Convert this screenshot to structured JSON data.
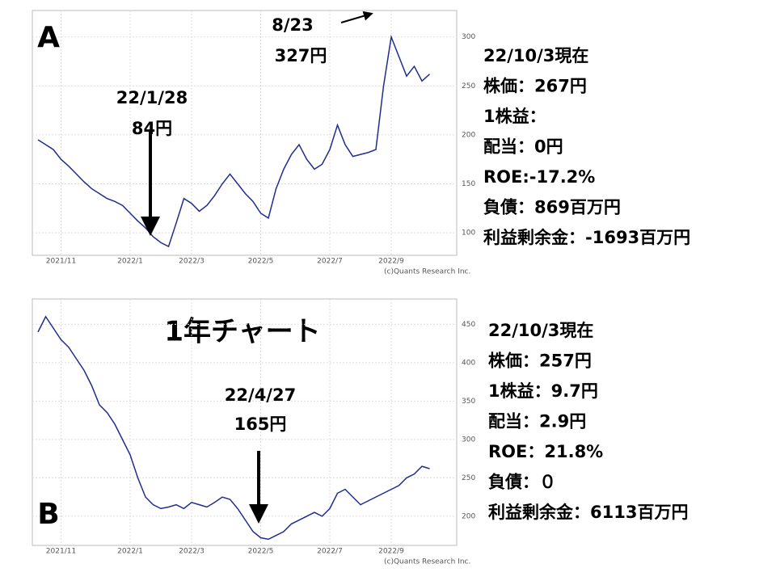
{
  "chart_title": "1年チャート",
  "chart_data": [
    {
      "type": "line",
      "label": "A",
      "credit": "(c)Quants Research Inc.",
      "categories": [
        null,
        null,
        null,
        "2021/11",
        null,
        null,
        null,
        null,
        null,
        null,
        null,
        null,
        "2022/1",
        null,
        null,
        null,
        null,
        null,
        null,
        null,
        "2022/3",
        null,
        null,
        null,
        null,
        null,
        null,
        null,
        null,
        "2022/5",
        null,
        null,
        null,
        null,
        null,
        null,
        null,
        null,
        "2022/7",
        null,
        null,
        null,
        null,
        null,
        null,
        null,
        "2022/9",
        null,
        null,
        null,
        null,
        null
      ],
      "series": [
        {
          "color": "#1f2d8f",
          "values": [
            195,
            190,
            185,
            175,
            168,
            160,
            152,
            145,
            140,
            135,
            132,
            128,
            120,
            112,
            105,
            96,
            90,
            86,
            110,
            135,
            130,
            122,
            128,
            138,
            150,
            160,
            150,
            140,
            132,
            120,
            115,
            145,
            165,
            180,
            190,
            175,
            165,
            170,
            185,
            210,
            190,
            178,
            180,
            182,
            185,
            250,
            300,
            280,
            260,
            270,
            255,
            262
          ]
        }
      ],
      "ylim": [
        77,
        327
      ],
      "yticks": [
        100,
        150,
        200,
        250,
        300
      ],
      "grid": true,
      "annotations": [
        "22/1/28",
        "84円",
        "8/23",
        "327円"
      ]
    },
    {
      "type": "line",
      "label": "B",
      "credit": "(c)Quants Research Inc.",
      "categories": [
        null,
        null,
        null,
        "2021/11",
        null,
        null,
        null,
        null,
        null,
        null,
        null,
        null,
        "2022/1",
        null,
        null,
        null,
        null,
        null,
        null,
        null,
        "2022/3",
        null,
        null,
        null,
        null,
        null,
        null,
        null,
        null,
        "2022/5",
        null,
        null,
        null,
        null,
        null,
        null,
        null,
        null,
        "2022/7",
        null,
        null,
        null,
        null,
        null,
        null,
        null,
        "2022/9",
        null,
        null,
        null,
        null,
        null
      ],
      "series": [
        {
          "color": "#1f2d8f",
          "values": [
            440,
            460,
            445,
            430,
            420,
            405,
            390,
            370,
            345,
            335,
            320,
            300,
            280,
            250,
            225,
            215,
            210,
            212,
            215,
            210,
            218,
            215,
            212,
            218,
            225,
            222,
            210,
            195,
            180,
            172,
            170,
            175,
            180,
            190,
            195,
            200,
            205,
            200,
            210,
            230,
            235,
            225,
            215,
            220,
            225,
            230,
            235,
            240,
            250,
            255,
            265,
            262
          ]
        }
      ],
      "ylim": [
        162,
        483
      ],
      "yticks": [
        200,
        250,
        300,
        350,
        400,
        450
      ],
      "grid": true,
      "annotations": [
        "22/4/27",
        "165円"
      ]
    }
  ],
  "info": [
    [
      "22/10/3現在",
      "株価：267円",
      "1株益：",
      "配当：0円",
      "ROE:-17.2%",
      "負債：869百万円",
      "利益剰余金：-1693百万円"
    ],
    [
      "22/10/3現在",
      "株価：257円",
      "1株益：9.7円",
      "配当：2.9円",
      "ROE：21.8%",
      "負債：０",
      "利益剰余金：6113百万円"
    ]
  ]
}
